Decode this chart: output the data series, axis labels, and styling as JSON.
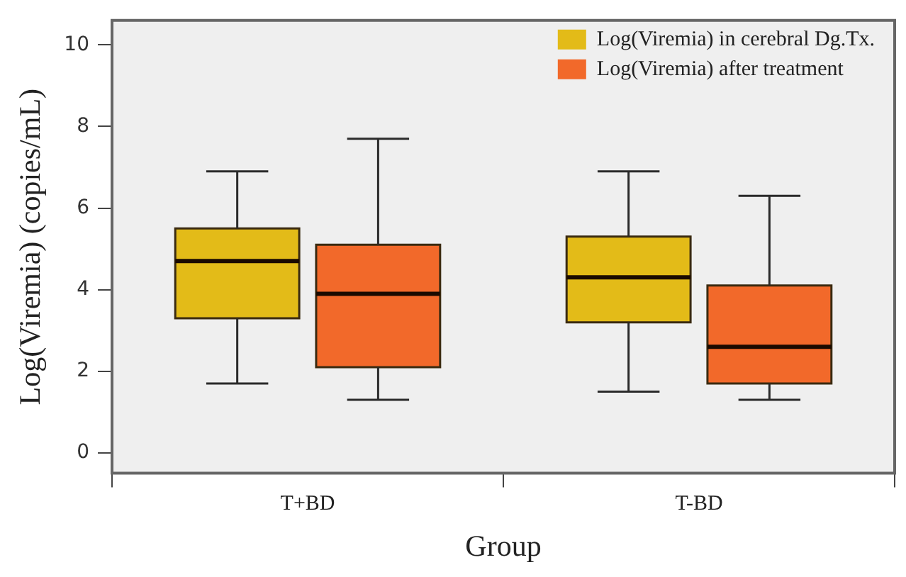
{
  "chart_data": {
    "type": "box",
    "xlabel": "Group",
    "ylabel": "Log(Viremia) (copies/mL)",
    "categories": [
      "T+BD",
      "T-BD"
    ],
    "series": [
      {
        "name": "Log(Viremia) in cerebral Dg.Tx.",
        "color": "#e3bb18",
        "boxes": [
          {
            "low": 1.7,
            "q1": 3.3,
            "median": 4.7,
            "q3": 5.5,
            "high": 6.9
          },
          {
            "low": 1.5,
            "q1": 3.2,
            "median": 4.3,
            "q3": 5.3,
            "high": 6.9
          }
        ]
      },
      {
        "name": "Log(Viremia) after treatment",
        "color": "#f2692a",
        "boxes": [
          {
            "low": 1.3,
            "q1": 2.1,
            "median": 3.9,
            "q3": 5.1,
            "high": 7.7
          },
          {
            "low": 1.3,
            "q1": 1.7,
            "median": 2.6,
            "q3": 4.1,
            "high": 6.3
          }
        ]
      }
    ],
    "ylim": [
      -0.5,
      10.6
    ],
    "yticks": [
      0,
      2,
      4,
      6,
      8,
      10
    ],
    "grid": false,
    "legend": "top right"
  }
}
